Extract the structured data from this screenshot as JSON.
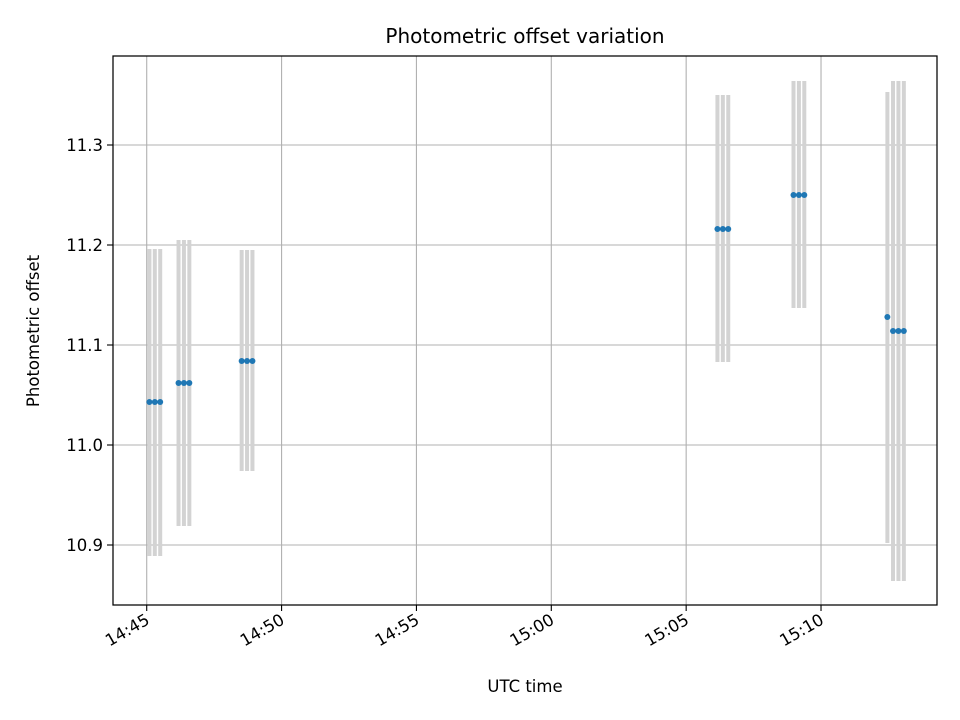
{
  "chart_data": {
    "type": "scatter",
    "title": "Photometric offset variation",
    "xlabel": "UTC time",
    "ylabel": "Photometric offset",
    "x_unit": "minutes after 14:45",
    "x_ticks": [
      {
        "value": 0,
        "label": "14:45"
      },
      {
        "value": 5,
        "label": "14:50"
      },
      {
        "value": 10,
        "label": "14:55"
      },
      {
        "value": 15,
        "label": "15:00"
      },
      {
        "value": 20,
        "label": "15:05"
      },
      {
        "value": 25,
        "label": "15:10"
      }
    ],
    "y_ticks": [
      {
        "value": 10.9,
        "label": "10.9"
      },
      {
        "value": 11.0,
        "label": "11.0"
      },
      {
        "value": 11.1,
        "label": "11.1"
      },
      {
        "value": 11.2,
        "label": "11.2"
      },
      {
        "value": 11.3,
        "label": "11.3"
      }
    ],
    "xlim": [
      -1.25,
      29.3
    ],
    "ylim": [
      10.84,
      11.389
    ],
    "grid": true,
    "point_color": "#1f77b4",
    "errorbar_color": "#d3d3d3",
    "points": [
      {
        "x": 0.1,
        "y": 11.043,
        "ylo": 10.889,
        "yhi": 11.196
      },
      {
        "x": 0.3,
        "y": 11.043,
        "ylo": 10.889,
        "yhi": 11.196
      },
      {
        "x": 0.5,
        "y": 11.043,
        "ylo": 10.889,
        "yhi": 11.196
      },
      {
        "x": 1.18,
        "y": 11.062,
        "ylo": 10.919,
        "yhi": 11.205
      },
      {
        "x": 1.38,
        "y": 11.062,
        "ylo": 10.919,
        "yhi": 11.205
      },
      {
        "x": 1.58,
        "y": 11.062,
        "ylo": 10.919,
        "yhi": 11.205
      },
      {
        "x": 3.52,
        "y": 11.084,
        "ylo": 10.974,
        "yhi": 11.195
      },
      {
        "x": 3.72,
        "y": 11.084,
        "ylo": 10.974,
        "yhi": 11.195
      },
      {
        "x": 3.92,
        "y": 11.084,
        "ylo": 10.974,
        "yhi": 11.195
      },
      {
        "x": 21.16,
        "y": 11.216,
        "ylo": 11.083,
        "yhi": 11.35
      },
      {
        "x": 21.36,
        "y": 11.216,
        "ylo": 11.083,
        "yhi": 11.35
      },
      {
        "x": 21.56,
        "y": 11.216,
        "ylo": 11.083,
        "yhi": 11.35
      },
      {
        "x": 23.98,
        "y": 11.25,
        "ylo": 11.137,
        "yhi": 11.364
      },
      {
        "x": 24.18,
        "y": 11.25,
        "ylo": 11.137,
        "yhi": 11.364
      },
      {
        "x": 24.38,
        "y": 11.25,
        "ylo": 11.137,
        "yhi": 11.364
      },
      {
        "x": 27.46,
        "y": 11.128,
        "ylo": 10.902,
        "yhi": 11.353
      },
      {
        "x": 27.67,
        "y": 11.114,
        "ylo": 10.864,
        "yhi": 11.364
      },
      {
        "x": 27.87,
        "y": 11.114,
        "ylo": 10.864,
        "yhi": 11.364
      },
      {
        "x": 28.07,
        "y": 11.114,
        "ylo": 10.864,
        "yhi": 11.364
      }
    ]
  }
}
